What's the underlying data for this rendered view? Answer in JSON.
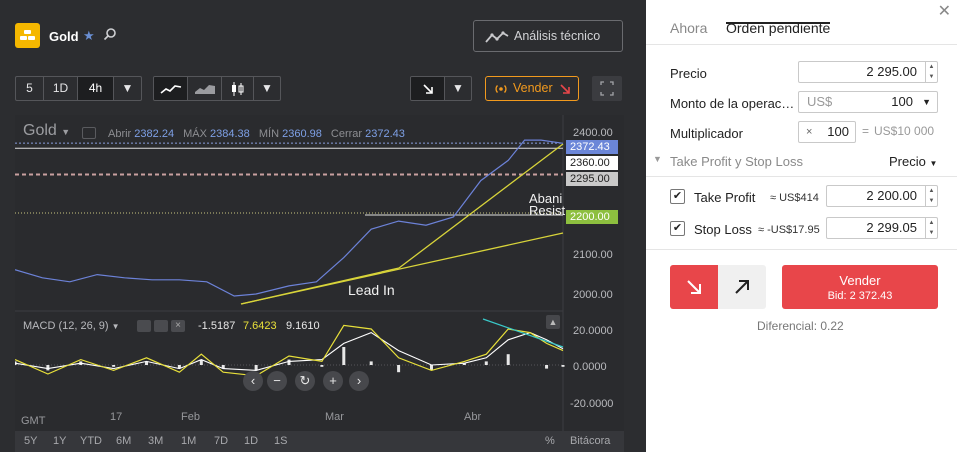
{
  "instrument": {
    "name": "Gold",
    "logo": "gold-bars-icon",
    "favorite_icon": "star-icon",
    "search_icon": "search-icon"
  },
  "toolbar": {
    "tech_analysis": "Análisis técnico",
    "intervals": [
      "5",
      "1D",
      "4h"
    ],
    "active_interval": "4h",
    "sell_button": "Vender",
    "accent": "#f29a1e"
  },
  "chart": {
    "symbol": "Gold",
    "ohlc": {
      "open_label": "Abrir",
      "open": "2382.24",
      "high_label": "MÁX",
      "high": "2384.38",
      "low_label": "MÍN",
      "low": "2360.98",
      "close_label": "Cerrar",
      "close": "2372.43"
    },
    "y_ticks": [
      "2400.00",
      "2100.00",
      "2000.00"
    ],
    "price_tags": [
      {
        "text": "2372.43",
        "bg": "#6b86d8",
        "color": "#ffffff"
      },
      {
        "text": "2360.00",
        "bg": "#ffffff",
        "color": "#222222"
      },
      {
        "text": "2295.00",
        "bg": "#c9c9c9",
        "color": "#222222"
      },
      {
        "text": "2200.00",
        "bg": "#8dbf3f",
        "color": "#ffffff"
      }
    ],
    "annotations": {
      "lead_in": "Lead In",
      "abani": "Abani",
      "resist": "Resist"
    },
    "macd": {
      "label": "MACD (12, 26, 9)",
      "v1": "-1.5187",
      "v2": "7.6423",
      "v3": "9.1610",
      "v2_color": "#e8e03a",
      "y_ticks": [
        "20.0000",
        "0.0000",
        "-20.0000"
      ]
    },
    "x_axis": [
      "GMT",
      "17",
      "Feb",
      "Mar",
      "Abr"
    ],
    "ranges": [
      "5Y",
      "1Y",
      "YTD",
      "6M",
      "3M",
      "1M",
      "7D",
      "1D",
      "1S"
    ],
    "percent": "%",
    "log": "Bitácora",
    "price_color": "#6c82d8",
    "trend_color": "#d8d43a"
  },
  "chart_data": {
    "type": "line",
    "price": [
      [
        0,
        2060
      ],
      [
        0.05,
        2040
      ],
      [
        0.1,
        2030
      ],
      [
        0.15,
        2048
      ],
      [
        0.2,
        2040
      ],
      [
        0.25,
        2035
      ],
      [
        0.3,
        2035
      ],
      [
        0.35,
        2030
      ],
      [
        0.4,
        1995
      ],
      [
        0.44,
        2000
      ],
      [
        0.5,
        2020
      ],
      [
        0.55,
        2030
      ],
      [
        0.6,
        2090
      ],
      [
        0.65,
        2160
      ],
      [
        0.7,
        2180
      ],
      [
        0.75,
        2170
      ],
      [
        0.8,
        2190
      ],
      [
        0.85,
        2280
      ],
      [
        0.9,
        2330
      ],
      [
        0.93,
        2380
      ],
      [
        0.96,
        2380
      ],
      [
        1.0,
        2372
      ]
    ],
    "macd_line": [
      [
        0,
        3
      ],
      [
        0.06,
        -5
      ],
      [
        0.12,
        3
      ],
      [
        0.18,
        -3
      ],
      [
        0.24,
        4
      ],
      [
        0.3,
        -4
      ],
      [
        0.34,
        6
      ],
      [
        0.38,
        -4
      ],
      [
        0.44,
        -6
      ],
      [
        0.5,
        5
      ],
      [
        0.56,
        2
      ],
      [
        0.6,
        22
      ],
      [
        0.65,
        20
      ],
      [
        0.7,
        4
      ],
      [
        0.76,
        -3
      ],
      [
        0.82,
        2
      ],
      [
        0.86,
        6
      ],
      [
        0.9,
        20
      ],
      [
        0.94,
        18
      ],
      [
        0.97,
        12
      ],
      [
        1.0,
        8
      ]
    ],
    "signal_line": [
      [
        0,
        1
      ],
      [
        0.06,
        -2
      ],
      [
        0.12,
        1
      ],
      [
        0.18,
        -2
      ],
      [
        0.24,
        2
      ],
      [
        0.3,
        -2
      ],
      [
        0.34,
        3
      ],
      [
        0.38,
        -2
      ],
      [
        0.44,
        -3
      ],
      [
        0.5,
        2
      ],
      [
        0.56,
        3
      ],
      [
        0.6,
        12
      ],
      [
        0.65,
        18
      ],
      [
        0.7,
        8
      ],
      [
        0.76,
        0
      ],
      [
        0.82,
        1
      ],
      [
        0.86,
        4
      ],
      [
        0.9,
        14
      ],
      [
        0.94,
        18
      ],
      [
        0.97,
        14
      ],
      [
        1.0,
        9
      ]
    ]
  },
  "order": {
    "tabs": [
      "Ahora",
      "Orden pendiente"
    ],
    "active_tab": "Orden pendiente",
    "price_label": "Precio",
    "price_value": "2 295.00",
    "amount_label": "Monto de la operac…",
    "amount_currency": "US$",
    "amount_value": "100",
    "mult_label": "Multiplicador",
    "mult_x": "×",
    "mult_value": "100",
    "mult_eq": "=",
    "mult_total": "US$10 000",
    "tpsl_label": "Take Profit y Stop Loss",
    "tpsl_mode": "Precio",
    "tp_label": "Take Profit",
    "tp_approx": "≈ US$414",
    "tp_value": "2 200.00",
    "sl_label": "Stop Loss",
    "sl_approx": "≈ -US$17.95",
    "sl_value": "2 299.05",
    "sell_label": "Vender",
    "bid_label": "Bid: 2 372.43",
    "spread": "Diferencial: 0.22",
    "sell_color": "#e8464a"
  }
}
